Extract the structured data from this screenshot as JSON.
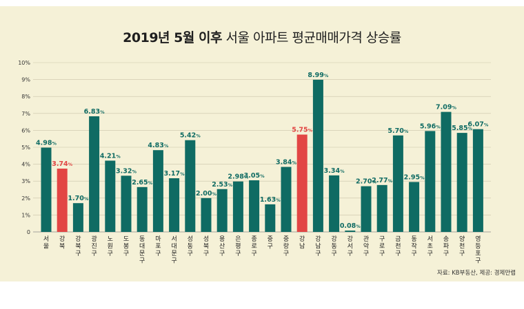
{
  "title": {
    "bold": "2019년 5월 이후",
    "regular": "서울 아파트 평균매매가격 상승률"
  },
  "source": "자료: KB부동산, 제공: 경제만랩",
  "colors": {
    "background": "#f5f1d7",
    "bar_default": "#0f6b63",
    "bar_highlight": "#e24644",
    "label_default": "#0f6b63",
    "label_highlight": "#e24644"
  },
  "chart_data": {
    "type": "bar",
    "categories": [
      "서울",
      "강북",
      "강북구",
      "광진구",
      "노원구",
      "도봉구",
      "동대문구",
      "마포구",
      "서대문구",
      "성동구",
      "성북구",
      "용산구",
      "은평구",
      "종로구",
      "중구",
      "중랑구",
      "강남",
      "강남구",
      "강동구",
      "강서구",
      "관악구",
      "구로구",
      "금천구",
      "동작구",
      "서초구",
      "송파구",
      "양천구",
      "영등포구"
    ],
    "values": [
      4.98,
      3.74,
      1.7,
      6.83,
      4.21,
      3.32,
      2.65,
      4.83,
      3.17,
      5.42,
      2.0,
      2.53,
      2.98,
      3.05,
      1.63,
      3.84,
      5.75,
      8.99,
      3.34,
      0.08,
      2.7,
      2.77,
      5.7,
      2.95,
      5.96,
      7.09,
      5.85,
      6.07
    ],
    "value_labels": [
      "4.98%",
      "3.74%",
      "1.70%",
      "6.83%",
      "4.21%",
      "3.32%",
      "2.65%",
      "4.83%",
      "3.17%",
      "5.42%",
      "2.00%",
      "2.53%",
      "2.98%",
      "3.05%",
      "1.63%",
      "3.84%",
      "5.75%",
      "8.99%",
      "3.34%",
      "0.08%",
      "2.70%",
      "2.77%",
      "5.70%",
      "2.95%",
      "5.96%",
      "7.09%",
      "5.85%",
      "6.07%"
    ],
    "highlighted": [
      "강북",
      "강남"
    ],
    "yticks": [
      "0",
      "1%",
      "2%",
      "3%",
      "4%",
      "5%",
      "6%",
      "7%",
      "8%",
      "9%",
      "10%"
    ],
    "ylim": [
      0,
      10
    ],
    "grid": true,
    "xlabel": "",
    "ylabel": ""
  }
}
